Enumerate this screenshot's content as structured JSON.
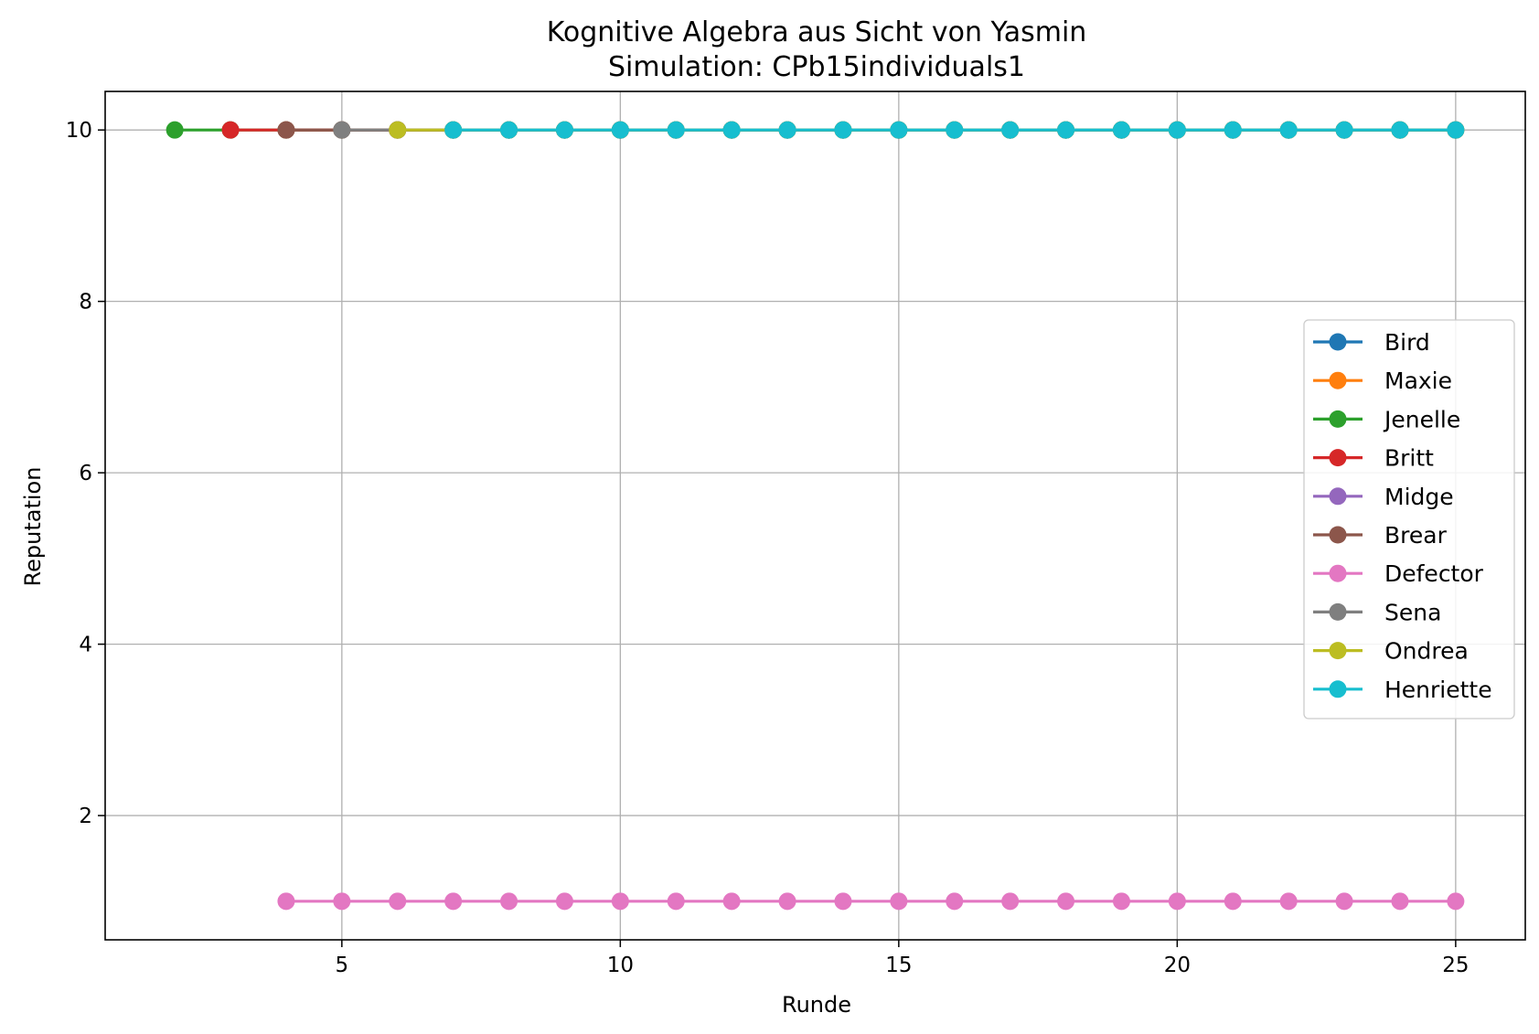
{
  "chart_data": {
    "type": "line",
    "title": "Kognitive Algebra aus Sicht von Yasmin",
    "subtitle": "Simulation: CPb15individuals1",
    "xlabel": "Runde",
    "ylabel": "Reputation",
    "xlim": [
      0.75,
      26.25
    ],
    "ylim": [
      0.55,
      10.45
    ],
    "xticks": [
      5,
      10,
      15,
      20,
      25
    ],
    "yticks": [
      2,
      4,
      6,
      8,
      10
    ],
    "grid": true,
    "legend_position": "center-right",
    "series": [
      {
        "name": "Bird",
        "color": "#1f77b4",
        "x": [],
        "y": []
      },
      {
        "name": "Maxie",
        "color": "#ff7f0e",
        "x": [],
        "y": []
      },
      {
        "name": "Jenelle",
        "color": "#2ca02c",
        "x": [
          2,
          3,
          4,
          5,
          6,
          7,
          8,
          9,
          10,
          11,
          12,
          13,
          14,
          15,
          16,
          17,
          18,
          19,
          20,
          21,
          22,
          23,
          24,
          25
        ],
        "y": [
          10,
          10,
          10,
          10,
          10,
          10,
          10,
          10,
          10,
          10,
          10,
          10,
          10,
          10,
          10,
          10,
          10,
          10,
          10,
          10,
          10,
          10,
          10,
          10
        ]
      },
      {
        "name": "Britt",
        "color": "#d62728",
        "x": [
          3,
          4,
          5,
          6,
          7,
          8,
          9,
          10,
          11,
          12,
          13,
          14,
          15,
          16,
          17,
          18,
          19,
          20,
          21,
          22,
          23,
          24,
          25
        ],
        "y": [
          10,
          10,
          10,
          10,
          10,
          10,
          10,
          10,
          10,
          10,
          10,
          10,
          10,
          10,
          10,
          10,
          10,
          10,
          10,
          10,
          10,
          10,
          10
        ]
      },
      {
        "name": "Midge",
        "color": "#9467bd",
        "x": [],
        "y": []
      },
      {
        "name": "Brear",
        "color": "#8c564b",
        "x": [
          4,
          5,
          6,
          7,
          8,
          9,
          10,
          11,
          12,
          13,
          14,
          15,
          16,
          17,
          18,
          19,
          20,
          21,
          22,
          23,
          24,
          25
        ],
        "y": [
          10,
          10,
          10,
          10,
          10,
          10,
          10,
          10,
          10,
          10,
          10,
          10,
          10,
          10,
          10,
          10,
          10,
          10,
          10,
          10,
          10,
          10
        ]
      },
      {
        "name": "Defector",
        "color": "#e377c2",
        "x": [
          4,
          5,
          6,
          7,
          8,
          9,
          10,
          11,
          12,
          13,
          14,
          15,
          16,
          17,
          18,
          19,
          20,
          21,
          22,
          23,
          24,
          25
        ],
        "y": [
          1,
          1,
          1,
          1,
          1,
          1,
          1,
          1,
          1,
          1,
          1,
          1,
          1,
          1,
          1,
          1,
          1,
          1,
          1,
          1,
          1,
          1
        ]
      },
      {
        "name": "Sena",
        "color": "#7f7f7f",
        "x": [
          5,
          6,
          7,
          8,
          9,
          10,
          11,
          12,
          13,
          14,
          15,
          16,
          17,
          18,
          19,
          20,
          21,
          22,
          23,
          24,
          25
        ],
        "y": [
          10,
          10,
          10,
          10,
          10,
          10,
          10,
          10,
          10,
          10,
          10,
          10,
          10,
          10,
          10,
          10,
          10,
          10,
          10,
          10,
          10
        ]
      },
      {
        "name": "Ondrea",
        "color": "#bcbd22",
        "x": [
          6,
          7,
          8,
          9,
          10,
          11,
          12,
          13,
          14,
          15,
          16,
          17,
          18,
          19,
          20,
          21,
          22,
          23,
          24,
          25
        ],
        "y": [
          10,
          10,
          10,
          10,
          10,
          10,
          10,
          10,
          10,
          10,
          10,
          10,
          10,
          10,
          10,
          10,
          10,
          10,
          10,
          10
        ]
      },
      {
        "name": "Henriette",
        "color": "#17becf",
        "x": [
          7,
          8,
          9,
          10,
          11,
          12,
          13,
          14,
          15,
          16,
          17,
          18,
          19,
          20,
          21,
          22,
          23,
          24,
          25
        ],
        "y": [
          10,
          10,
          10,
          10,
          10,
          10,
          10,
          10,
          10,
          10,
          10,
          10,
          10,
          10,
          10,
          10,
          10,
          10,
          10
        ]
      }
    ]
  }
}
